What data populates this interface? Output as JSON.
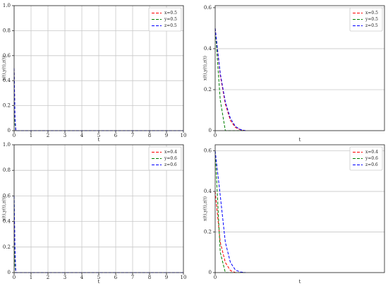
{
  "chart_data": [
    {
      "type": "line",
      "xlabel": "t",
      "ylabel": "x(t),y(t),z(t)",
      "x": [
        0,
        0.05,
        0.1,
        10
      ],
      "series": [
        {
          "name": "x=0.5",
          "color": "red",
          "values": [
            0.5,
            0.1,
            0,
            0
          ]
        },
        {
          "name": "y=0.5",
          "color": "green",
          "values": [
            0.5,
            0.05,
            0,
            0
          ]
        },
        {
          "name": "z=0.5",
          "color": "blue",
          "values": [
            0.5,
            0.12,
            0,
            0
          ]
        }
      ],
      "xlim": [
        0,
        10
      ],
      "ylim": [
        0,
        1
      ],
      "xticks": [
        0,
        1,
        2,
        3,
        4,
        5,
        6,
        7,
        8,
        9,
        10
      ],
      "yticks": [
        0,
        0.2,
        0.4,
        0.6,
        0.8,
        {
          "value": 1,
          "label": "1.0"
        }
      ],
      "grid": "both",
      "legend": "upper right"
    },
    {
      "type": "line",
      "xlabel": "t",
      "ylabel": "x(t),y(t),z(t)",
      "x": [
        0,
        0.03,
        0.06,
        0.09,
        0.12,
        0.15,
        0.18
      ],
      "series": [
        {
          "name": "x=0.5",
          "color": "red",
          "values": [
            0.5,
            0.27,
            0.13,
            0.05,
            0.015,
            0.004,
            0
          ]
        },
        {
          "name": "y=0.5",
          "color": "green",
          "values": [
            0.5,
            0.15,
            0,
            0,
            0,
            0,
            0
          ]
        },
        {
          "name": "z=0.5",
          "color": "blue",
          "values": [
            0.5,
            0.28,
            0.14,
            0.06,
            0.02,
            0.005,
            0
          ]
        }
      ],
      "xlim": [
        0,
        1
      ],
      "ylim": [
        0,
        0.61
      ],
      "xticks": [
        0
      ],
      "yticks": [
        0,
        0.2,
        0.4,
        0.6
      ],
      "grid": "y",
      "legend": "upper right"
    },
    {
      "type": "line",
      "xlabel": "t",
      "ylabel": "x(t),y(t),z(t)",
      "x": [
        0,
        0.05,
        0.1,
        10
      ],
      "series": [
        {
          "name": "x=0.4",
          "color": "red",
          "values": [
            0.4,
            0.1,
            0,
            0
          ]
        },
        {
          "name": "y=0.6",
          "color": "green",
          "values": [
            0.6,
            0.05,
            0,
            0
          ]
        },
        {
          "name": "z=0.6",
          "color": "blue",
          "values": [
            0.6,
            0.2,
            0,
            0
          ]
        }
      ],
      "xlim": [
        0,
        10
      ],
      "ylim": [
        0,
        1
      ],
      "xticks": [
        0,
        1,
        2,
        3,
        4,
        5,
        6,
        7,
        8,
        9,
        10
      ],
      "yticks": [
        0,
        0.2,
        0.4,
        0.6,
        0.8,
        {
          "value": 1,
          "label": "1.0"
        }
      ],
      "grid": "both",
      "legend": "upper right"
    },
    {
      "type": "line",
      "xlabel": "t",
      "ylabel": "x(t),y(t),z(t)",
      "x": [
        0,
        0.03,
        0.06,
        0.09,
        0.12,
        0.15,
        0.18
      ],
      "series": [
        {
          "name": "x=0.4",
          "color": "red",
          "values": [
            0.4,
            0.15,
            0.05,
            0.01,
            0,
            0,
            0
          ]
        },
        {
          "name": "y=0.6",
          "color": "green",
          "values": [
            0.6,
            0.1,
            0,
            0,
            0,
            0,
            0
          ]
        },
        {
          "name": "z=0.6",
          "color": "blue",
          "values": [
            0.6,
            0.38,
            0.15,
            0.05,
            0.012,
            0.003,
            0
          ]
        }
      ],
      "xlim": [
        0,
        1
      ],
      "ylim": [
        0,
        0.63
      ],
      "xticks": [
        0
      ],
      "yticks": [
        0,
        0.2,
        0.4,
        0.6
      ],
      "grid": "y",
      "legend": "upper right"
    }
  ]
}
